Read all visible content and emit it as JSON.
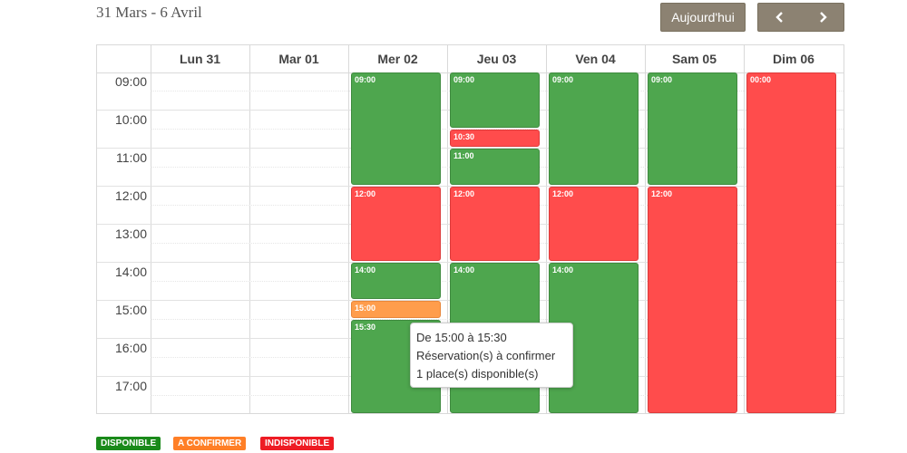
{
  "header": {
    "range_title": "31 Mars - 6 Avril",
    "today_label": "Aujourd'hui"
  },
  "calendar": {
    "days": [
      "Lun 31",
      "Mar 01",
      "Mer 02",
      "Jeu 03",
      "Ven 04",
      "Sam 05",
      "Dim 06"
    ],
    "hours": [
      "09:00",
      "10:00",
      "11:00",
      "12:00",
      "13:00",
      "14:00",
      "15:00",
      "16:00",
      "17:00"
    ],
    "events": {
      "mer_0900": "09:00",
      "mer_1200": "12:00",
      "mer_1400": "14:00",
      "mer_1500": "15:00",
      "mer_1530": "15:30",
      "jeu_0900": "09:00",
      "jeu_1030": "10:30",
      "jeu_1100": "11:00",
      "jeu_1200": "12:00",
      "jeu_1400": "14:00",
      "ven_0900": "09:00",
      "ven_1200": "12:00",
      "ven_1400": "14:00",
      "sam_0900": "09:00",
      "sam_1200": "12:00",
      "dim_0000": "00:00"
    }
  },
  "tooltip": {
    "line1": "De 15:00 à 15:30",
    "line2": "Réservation(s) à confirmer",
    "line3": "1 place(s) disponible(s)"
  },
  "legend": {
    "available": "DISPONIBLE",
    "to_confirm": "A CONFIRMER",
    "unavailable": "INDISPONIBLE"
  },
  "colors": {
    "available": "#4ea64e",
    "to_confirm": "#ff9d4c",
    "unavailable": "#ff4c4c",
    "button": "#8c8272"
  },
  "icons": {
    "prev": "chevron-left-icon",
    "next": "chevron-right-icon"
  }
}
